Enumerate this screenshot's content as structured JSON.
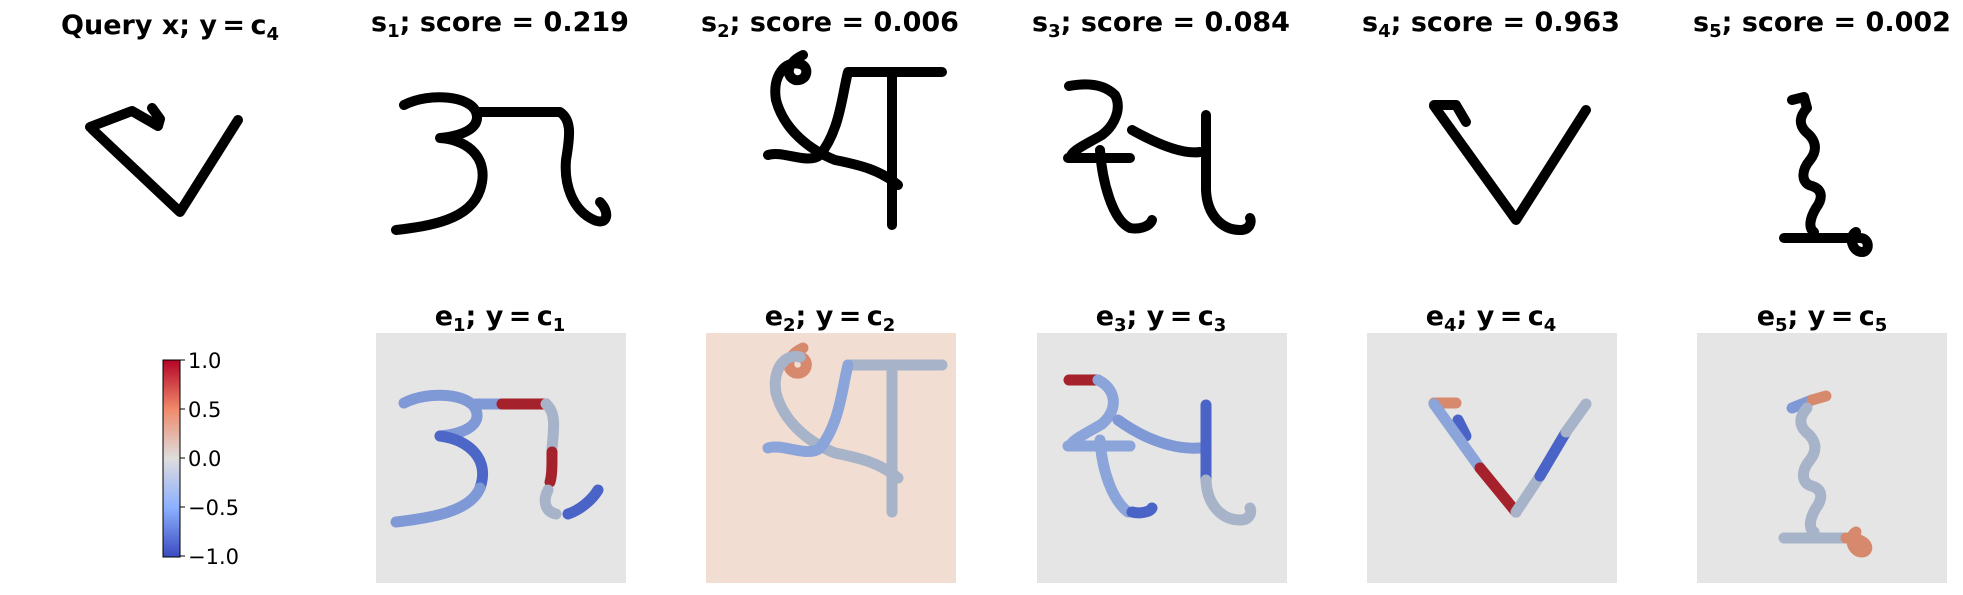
{
  "panels": [
    {
      "title_main": "Query x; y = c",
      "title_sub": "4",
      "title_tail": ""
    },
    {
      "title_main": "s",
      "title_sub": "1",
      "title_tail": "; score = 0.219"
    },
    {
      "title_main": "s",
      "title_sub": "2",
      "title_tail": "; score = 0.006"
    },
    {
      "title_main": "s",
      "title_sub": "3",
      "title_tail": "; score = 0.084"
    },
    {
      "title_main": "s",
      "title_sub": "4",
      "title_tail": "; score = 0.963"
    },
    {
      "title_main": "s",
      "title_sub": "5",
      "title_tail": "; score = 0.002"
    }
  ],
  "explanations": [
    {
      "e_main": "e",
      "e_sub": "1",
      "mid": "; y = c",
      "c_sub": "1"
    },
    {
      "e_main": "e",
      "e_sub": "2",
      "mid": "; y = c",
      "c_sub": "2"
    },
    {
      "e_main": "e",
      "e_sub": "3",
      "mid": "; y = c",
      "c_sub": "3"
    },
    {
      "e_main": "e",
      "e_sub": "4",
      "mid": "; y = c",
      "c_sub": "4"
    },
    {
      "e_main": "e",
      "e_sub": "5",
      "mid": "; y = c",
      "c_sub": "5"
    }
  ],
  "colorbar": {
    "ticks": [
      "1.0",
      "0.5",
      "0.0",
      "−0.5",
      "−1.0"
    ],
    "colormap": "coolwarm",
    "colors": {
      "high": "#b40426",
      "mid": "#dddddd",
      "low": "#3b4cc0"
    }
  },
  "colors": {
    "stroke_dark": "#000000",
    "panel_neutral": "#e5e5e5",
    "panel_warm": "#f1ddd2",
    "red": "#a5212c",
    "light_red": "#d6896d",
    "blue": "#4a63c6",
    "light_blue": "#8ba4d9",
    "grey": "#a6b3c8"
  }
}
